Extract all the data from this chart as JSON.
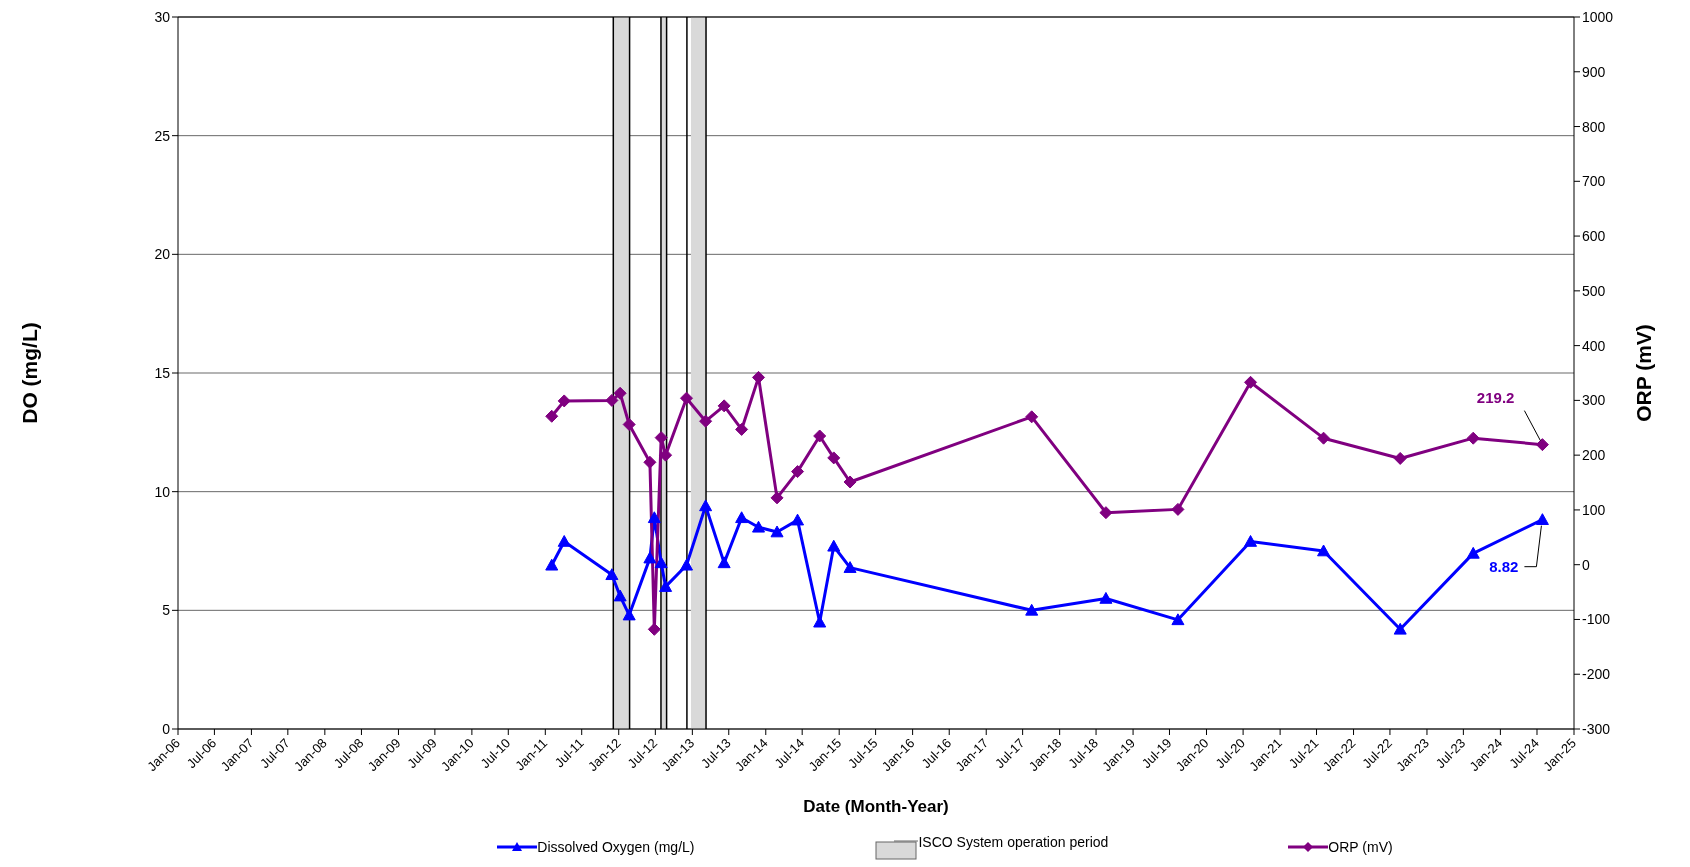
{
  "chart_data": {
    "type": "line",
    "xlabel": "Date (Month-Year)",
    "ylabel": "DO (mg/L)",
    "y2label": "ORP (mV)",
    "x": [
      "2011-02-02",
      "2011-04-05",
      "2011-11-28",
      "2012-01-08",
      "2012-02-22",
      "2012-06-04",
      "2012-06-26",
      "2012-07-30",
      "2012-08-21",
      "2012-12-03",
      "2013-03-08",
      "2013-06-08",
      "2013-09-03",
      "2013-11-26",
      "2014-02-26",
      "2014-06-08",
      "2014-09-26",
      "2014-12-05",
      "2015-02-24",
      "2017-08-15",
      "2018-08-19",
      "2019-08-12",
      "2020-08-07",
      "2021-08-05",
      "2022-08-21",
      "2023-08-19",
      "2024-07-28"
    ],
    "series": [
      {
        "name": "Dissolved Oxygen (mg/L)",
        "color": "#0000ff",
        "marker": "triangle",
        "axis": "y",
        "values": [
          6.9,
          7.9,
          6.5,
          5.6,
          4.8,
          7.2,
          8.9,
          7.0,
          6.0,
          6.9,
          9.4,
          7.0,
          8.9,
          8.5,
          8.3,
          8.8,
          4.5,
          7.7,
          6.8,
          5.0,
          5.5,
          4.6,
          7.9,
          7.5,
          4.2,
          7.4,
          8.82
        ],
        "value_labels": [
          null,
          null,
          null,
          null,
          null,
          null,
          null,
          null,
          null,
          null,
          null,
          null,
          null,
          null,
          null,
          null,
          null,
          null,
          null,
          null,
          null,
          null,
          null,
          null,
          null,
          null,
          "8.82"
        ]
      },
      {
        "name": "ORP (mV)",
        "color": "#800080",
        "marker": "diamond",
        "axis": "y2",
        "values": [
          271,
          299,
          300,
          313,
          256,
          187,
          -118,
          232,
          200,
          304,
          262,
          290,
          247,
          342,
          122,
          170,
          235,
          195,
          151,
          270,
          95,
          101,
          333,
          231,
          194,
          231,
          219.2
        ],
        "value_labels": [
          null,
          null,
          null,
          null,
          null,
          null,
          null,
          null,
          null,
          null,
          null,
          null,
          null,
          null,
          null,
          null,
          null,
          null,
          null,
          null,
          null,
          null,
          null,
          null,
          null,
          null,
          "219.2"
        ]
      }
    ],
    "bands": [
      {
        "axis": "x",
        "from": "2011-12-05",
        "to": "2012-02-24",
        "label": "ISCO System operation period",
        "color": "#d9d9d9"
      },
      {
        "axis": "x",
        "from": "2012-07-29",
        "to": "2012-08-26",
        "color": "#d9d9d9"
      },
      {
        "axis": "x",
        "from": "2012-12-25",
        "to": "2013-03-10",
        "color": "#d9d9d9"
      }
    ],
    "ref_lines": [
      {
        "axis": "x",
        "value": "2011-12-05",
        "color": "#000000"
      },
      {
        "axis": "x",
        "value": "2012-02-24",
        "color": "#000000"
      },
      {
        "axis": "x",
        "value": "2012-07-29",
        "color": "#000000"
      },
      {
        "axis": "x",
        "value": "2012-08-26",
        "color": "#000000"
      },
      {
        "axis": "x",
        "value": "2012-12-05",
        "color": "#000000"
      },
      {
        "axis": "x",
        "value": "2013-03-10",
        "color": "#000000"
      }
    ],
    "xlim": [
      "2006-01",
      "2025-01"
    ],
    "xticks": [
      {
        "value": "2006-01",
        "label": "Jan-06"
      },
      {
        "value": "2006-07",
        "label": "Jul-06"
      },
      {
        "value": "2007-01",
        "label": "Jan-07"
      },
      {
        "value": "2007-07",
        "label": "Jul-07"
      },
      {
        "value": "2008-01",
        "label": "Jan-08"
      },
      {
        "value": "2008-07",
        "label": "Jul-08"
      },
      {
        "value": "2009-01",
        "label": "Jan-09"
      },
      {
        "value": "2009-07",
        "label": "Jul-09"
      },
      {
        "value": "2010-01",
        "label": "Jan-10"
      },
      {
        "value": "2010-07",
        "label": "Jul-10"
      },
      {
        "value": "2011-01",
        "label": "Jan-11"
      },
      {
        "value": "2011-07",
        "label": "Jul-11"
      },
      {
        "value": "2012-01",
        "label": "Jan-12"
      },
      {
        "value": "2012-07",
        "label": "Jul-12"
      },
      {
        "value": "2013-01",
        "label": "Jan-13"
      },
      {
        "value": "2013-07",
        "label": "Jul-13"
      },
      {
        "value": "2014-01",
        "label": "Jan-14"
      },
      {
        "value": "2014-07",
        "label": "Jul-14"
      },
      {
        "value": "2015-01",
        "label": "Jan-15"
      },
      {
        "value": "2015-07",
        "label": "Jul-15"
      },
      {
        "value": "2016-01",
        "label": "Jan-16"
      },
      {
        "value": "2016-07",
        "label": "Jul-16"
      },
      {
        "value": "2017-01",
        "label": "Jan-17"
      },
      {
        "value": "2017-07",
        "label": "Jul-17"
      },
      {
        "value": "2018-01",
        "label": "Jan-18"
      },
      {
        "value": "2018-07",
        "label": "Jul-18"
      },
      {
        "value": "2019-01",
        "label": "Jan-19"
      },
      {
        "value": "2019-07",
        "label": "Jul-19"
      },
      {
        "value": "2020-01",
        "label": "Jan-20"
      },
      {
        "value": "2020-07",
        "label": "Jul-20"
      },
      {
        "value": "2021-01",
        "label": "Jan-21"
      },
      {
        "value": "2021-07",
        "label": "Jul-21"
      },
      {
        "value": "2022-01",
        "label": "Jan-22"
      },
      {
        "value": "2022-07",
        "label": "Jul-22"
      },
      {
        "value": "2023-01",
        "label": "Jan-23"
      },
      {
        "value": "2023-07",
        "label": "Jul-23"
      },
      {
        "value": "2024-01",
        "label": "Jan-24"
      },
      {
        "value": "2024-07",
        "label": "Jul-24"
      },
      {
        "value": "2025-01",
        "label": "Jan-25"
      }
    ],
    "ylim": [
      0,
      30
    ],
    "yticks": [
      0,
      5,
      10,
      15,
      20,
      25,
      30
    ],
    "y2lim": [
      -300,
      1000
    ],
    "y2ticks": [
      -300,
      -200,
      -100,
      0,
      100,
      200,
      300,
      400,
      500,
      600,
      700,
      800,
      900,
      1000
    ],
    "grid": "y",
    "legend": "bottom",
    "line_style": "solid"
  }
}
